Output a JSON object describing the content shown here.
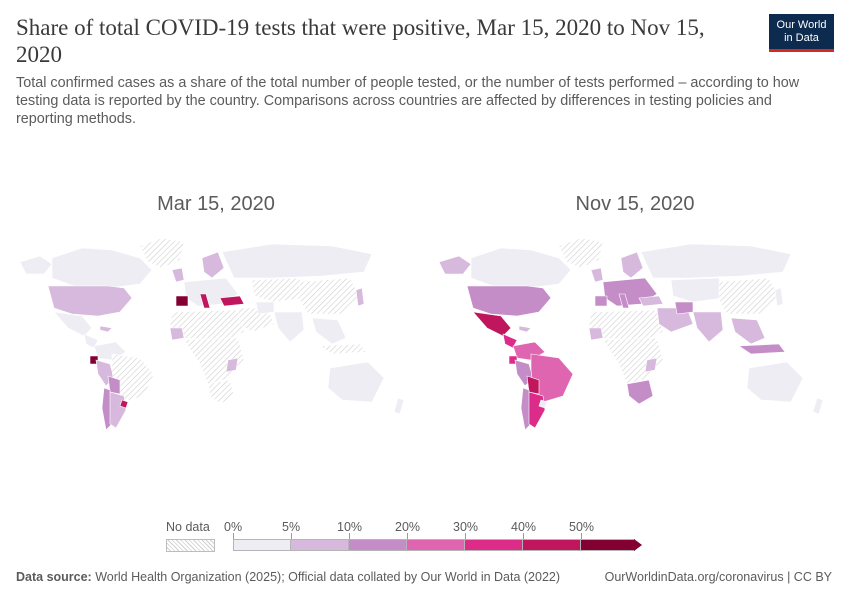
{
  "header": {
    "title": "Share of total COVID-19 tests that were positive, Mar 15, 2020 to Nov 15, 2020",
    "subtitle": "Total confirmed cases as a share of the total number of people tested, or the number of tests performed – according to how testing data is reported by the country. Comparisons across countries are affected by differences in testing policies and reporting methods.",
    "logo_line1": "Our World",
    "logo_line2": "in Data"
  },
  "maps": {
    "left_title": "Mar 15, 2020",
    "right_title": "Nov 15, 2020"
  },
  "legend": {
    "no_data_label": "No data",
    "bins": [
      "0%",
      "5%",
      "10%",
      "20%",
      "30%",
      "40%",
      "50%"
    ],
    "colors": [
      "#efedf4",
      "#d6b9dc",
      "#c48dc7",
      "#df65b0",
      "#dd2b8a",
      "#c0165d",
      "#820032"
    ],
    "no_data_color": "#e8e8e8"
  },
  "footer": {
    "source_label": "Data source:",
    "source_text": "World Health Organization (2025); Official data collated by Our World in Data (2022)",
    "url": "OurWorldinData.org/coronavirus | CC BY"
  }
}
